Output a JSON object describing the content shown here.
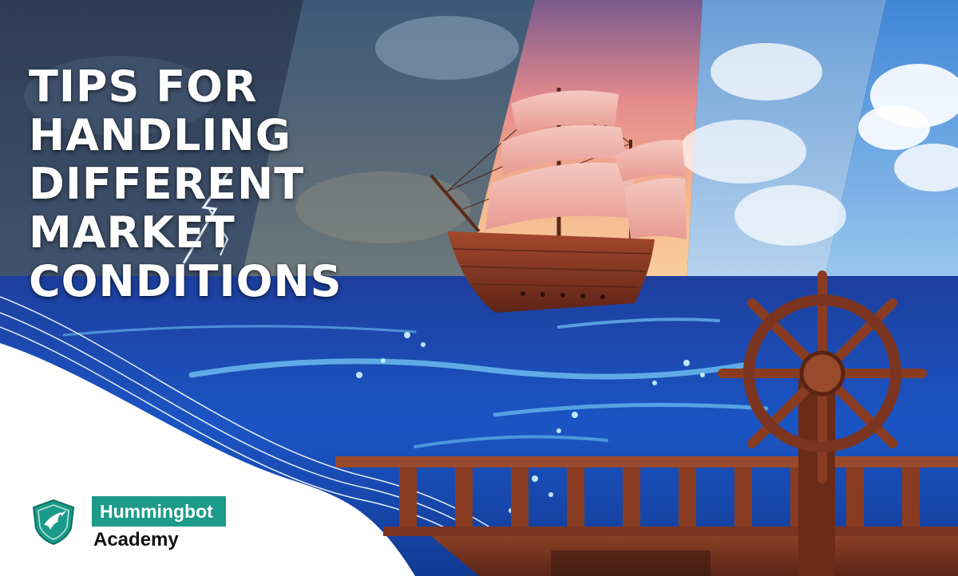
{
  "banner": {
    "title_lines": [
      "TIPS FOR HANDLING",
      "DIFFERENT MARKET",
      "CONDITIONS"
    ]
  },
  "brand": {
    "name": "Hummingbot",
    "subtitle": "Academy",
    "logo_icon": "hummingbird-badge-icon",
    "accent_color": "#1c9a8a"
  },
  "scene": {
    "sky_panels": [
      "stormy-lightning-sky",
      "dark-cloudy-sky",
      "sunset-sky",
      "white-cloudy-sky",
      "clear-blue-sky"
    ],
    "objects": [
      "sailing-ship",
      "ocean",
      "ship-wheel",
      "deck-railing",
      "wooden-deck"
    ],
    "colors": {
      "ocean": "#1a4fb8",
      "wood": "#7a3a22",
      "sunset": "#f4a090"
    }
  }
}
